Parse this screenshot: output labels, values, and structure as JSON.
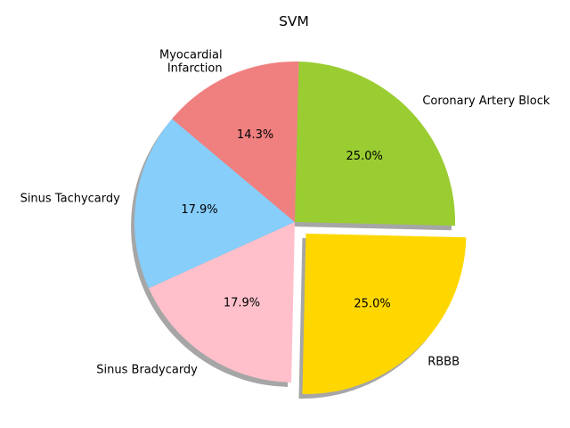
{
  "chart_data": {
    "type": "pie",
    "title": "SVM",
    "slices": [
      {
        "label": "Sinus Tachycardy",
        "value": 17.9,
        "pct_label": "17.9%",
        "color": "#87cefa"
      },
      {
        "label": "Sinus Bradycardy",
        "value": 17.9,
        "pct_label": "17.9%",
        "color": "#ffc0cb"
      },
      {
        "label": "RBBB",
        "value": 25.0,
        "pct_label": "25.0%",
        "color": "#ffd700",
        "exploded": true
      },
      {
        "label": "Coronary Artery Block",
        "value": 25.0,
        "pct_label": "25.0%",
        "color": "#9acd32"
      },
      {
        "label": "Myocardial\nInfarction",
        "value": 14.3,
        "pct_label": "14.3%",
        "color": "#f08080"
      }
    ],
    "start_angle_deg": 140,
    "shadow": true,
    "legend": false
  }
}
